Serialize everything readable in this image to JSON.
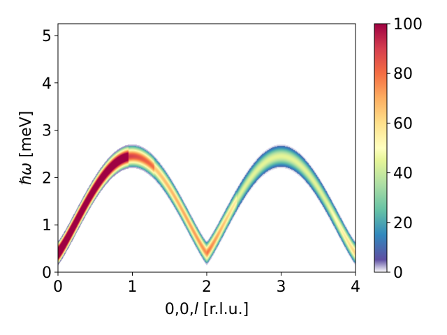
{
  "chart_data": {
    "type": "heatmap",
    "title": "",
    "xlabel": "0,0,",
    "xlabel_italic": "l",
    "xlabel_unit": " [r.l.u.]",
    "ylabel_symbol": "ℏω",
    "ylabel_unit": " [meV]",
    "xlim": [
      0,
      4
    ],
    "ylim": [
      0,
      5.25
    ],
    "x_ticks": [
      0,
      1,
      2,
      3,
      4
    ],
    "x_tick_labels": [
      "0",
      "1",
      "2",
      "3",
      "4"
    ],
    "y_ticks": [
      0,
      1,
      2,
      3,
      4,
      5
    ],
    "y_tick_labels": [
      "0",
      "1",
      "2",
      "3",
      "4",
      "5"
    ],
    "colorbar": {
      "range": [
        0,
        100
      ],
      "ticks": [
        0,
        20,
        40,
        60,
        80,
        100
      ],
      "tick_labels": [
        "0",
        "20",
        "40",
        "60",
        "80",
        "100"
      ],
      "colormap": "Spectral_r"
    },
    "dispersion": {
      "description_points_l": [
        0,
        0.5,
        1,
        1.5,
        2,
        2.5,
        3,
        3.5,
        4
      ],
      "center_energy_meV": [
        0.45,
        1.55,
        2.45,
        1.55,
        0.4,
        1.55,
        2.45,
        1.55,
        0.4
      ],
      "band_halfwidth_meV": 0.22
    },
    "intensity_features": {
      "saturated_region_l": [
        0,
        0.95
      ],
      "mid_intensity_region_l": [
        0.95,
        2.1
      ],
      "low_intensity_region_l": [
        2.1,
        3.9
      ]
    },
    "grid": false,
    "legend": "none"
  }
}
